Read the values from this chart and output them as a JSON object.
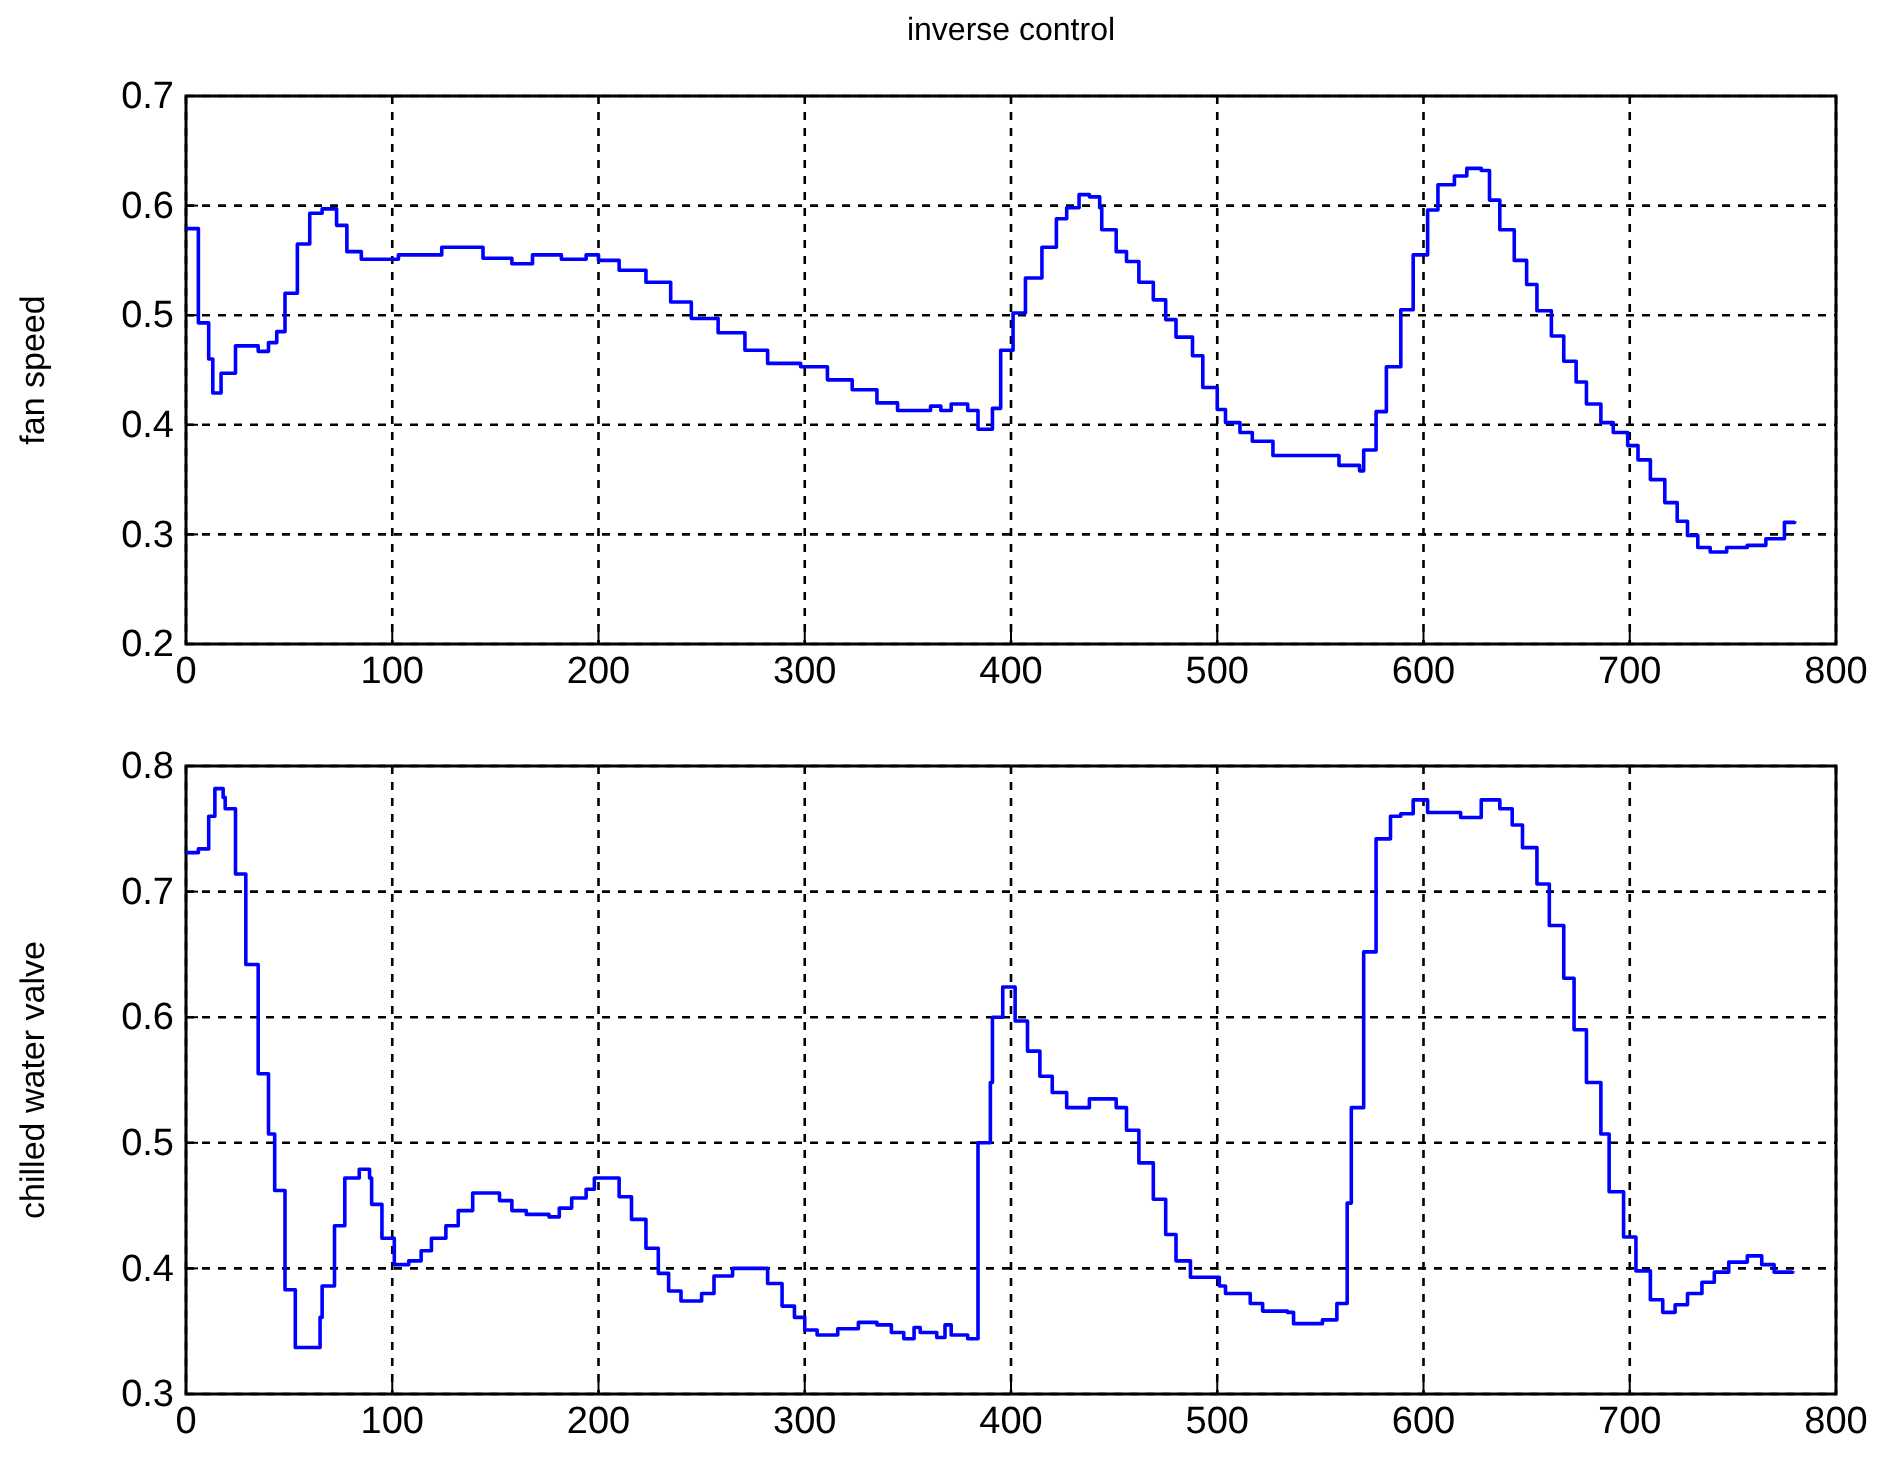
{
  "chart_data": [
    {
      "type": "step",
      "title": "inverse control",
      "ylabel": "fan speed",
      "xlim": [
        0,
        800
      ],
      "xticks": [
        0,
        100,
        200,
        300,
        400,
        500,
        600,
        700,
        800
      ],
      "ylim": [
        0.2,
        0.7
      ],
      "yticks": [
        0.2,
        0.3,
        0.4,
        0.5,
        0.6,
        0.7
      ],
      "grid": true,
      "line_style": "solid",
      "series": [
        {
          "color": "#0000ff",
          "x": [
            0,
            6,
            11,
            13,
            17,
            24,
            35,
            40,
            44,
            48,
            54,
            60,
            66,
            73,
            78,
            85,
            103,
            124,
            144,
            158,
            168,
            182,
            194,
            200,
            210,
            223,
            235,
            245,
            258,
            271,
            282,
            298,
            311,
            323,
            335,
            345,
            361,
            366,
            371,
            379,
            384,
            389,
            391,
            395,
            401,
            407,
            415,
            422,
            427,
            433,
            438,
            443,
            444,
            451,
            456,
            462,
            469,
            475,
            480,
            488,
            493,
            500,
            504,
            511,
            517,
            527,
            553,
            559,
            569,
            571,
            577,
            582,
            589,
            595,
            602,
            607,
            615,
            621,
            628,
            632,
            637,
            644,
            650,
            655,
            662,
            668,
            674,
            679,
            686,
            692,
            699,
            704,
            710,
            717,
            723,
            728,
            733,
            739,
            747,
            757,
            766,
            775,
            780
          ],
          "values": [
            0.579,
            0.493,
            0.46,
            0.429,
            0.447,
            0.472,
            0.467,
            0.475,
            0.485,
            0.52,
            0.565,
            0.593,
            0.597,
            0.582,
            0.558,
            0.551,
            0.555,
            0.562,
            0.552,
            0.547,
            0.555,
            0.551,
            0.555,
            0.55,
            0.541,
            0.53,
            0.512,
            0.497,
            0.484,
            0.468,
            0.456,
            0.453,
            0.441,
            0.432,
            0.42,
            0.413,
            0.417,
            0.413,
            0.419,
            0.413,
            0.396,
            0.396,
            0.415,
            0.468,
            0.502,
            0.534,
            0.562,
            0.588,
            0.598,
            0.61,
            0.608,
            0.598,
            0.578,
            0.558,
            0.549,
            0.53,
            0.514,
            0.496,
            0.48,
            0.463,
            0.434,
            0.414,
            0.402,
            0.393,
            0.385,
            0.372,
            0.372,
            0.363,
            0.358,
            0.377,
            0.412,
            0.453,
            0.505,
            0.555,
            0.596,
            0.619,
            0.627,
            0.634,
            0.632,
            0.605,
            0.578,
            0.55,
            0.528,
            0.504,
            0.481,
            0.458,
            0.439,
            0.419,
            0.402,
            0.393,
            0.381,
            0.368,
            0.35,
            0.329,
            0.312,
            0.299,
            0.288,
            0.284,
            0.288,
            0.29,
            0.296,
            0.311,
            0.312
          ]
        }
      ]
    },
    {
      "type": "step",
      "ylabel": "chilled water valve",
      "xlim": [
        0,
        800
      ],
      "xticks": [
        0,
        100,
        200,
        300,
        400,
        500,
        600,
        700,
        800
      ],
      "ylim": [
        0.3,
        0.8
      ],
      "yticks": [
        0.3,
        0.4,
        0.5,
        0.6,
        0.7,
        0.8
      ],
      "grid": true,
      "line_style": "solid",
      "series": [
        {
          "color": "#0000ff",
          "x": [
            0,
            6,
            11,
            14,
            18,
            19,
            24,
            29,
            35,
            40,
            43,
            48,
            53,
            65,
            66,
            72,
            77,
            84,
            89,
            90,
            95,
            101,
            108,
            114,
            119,
            126,
            132,
            139,
            148,
            152,
            158,
            165,
            176,
            181,
            187,
            194,
            198,
            208,
            210,
            216,
            223,
            229,
            234,
            240,
            250,
            256,
            265,
            277,
            282,
            289,
            295,
            300,
            306,
            316,
            326,
            335,
            342,
            348,
            353,
            356,
            364,
            368,
            371,
            379,
            384,
            390,
            391,
            396,
            402,
            408,
            414,
            420,
            427,
            438,
            451,
            456,
            462,
            469,
            475,
            480,
            487,
            501,
            504,
            516,
            522,
            534,
            537,
            551,
            558,
            563,
            565,
            571,
            577,
            584,
            589,
            595,
            602,
            618,
            628,
            637,
            643,
            648,
            655,
            661,
            668,
            673,
            679,
            686,
            690,
            697,
            703,
            710,
            716,
            722,
            728,
            735,
            741,
            748,
            757,
            764,
            770,
            779
          ],
          "values": [
            0.731,
            0.734,
            0.76,
            0.782,
            0.775,
            0.766,
            0.714,
            0.642,
            0.555,
            0.507,
            0.462,
            0.383,
            0.337,
            0.361,
            0.386,
            0.434,
            0.472,
            0.479,
            0.472,
            0.451,
            0.424,
            0.403,
            0.406,
            0.414,
            0.424,
            0.434,
            0.446,
            0.46,
            0.46,
            0.454,
            0.446,
            0.443,
            0.441,
            0.448,
            0.456,
            0.463,
            0.472,
            0.472,
            0.457,
            0.439,
            0.416,
            0.396,
            0.382,
            0.374,
            0.38,
            0.394,
            0.4,
            0.4,
            0.388,
            0.37,
            0.361,
            0.351,
            0.347,
            0.352,
            0.357,
            0.355,
            0.349,
            0.344,
            0.353,
            0.349,
            0.345,
            0.355,
            0.347,
            0.344,
            0.5,
            0.548,
            0.6,
            0.624,
            0.597,
            0.573,
            0.553,
            0.54,
            0.528,
            0.535,
            0.528,
            0.51,
            0.484,
            0.455,
            0.427,
            0.406,
            0.393,
            0.386,
            0.38,
            0.372,
            0.366,
            0.365,
            0.356,
            0.359,
            0.372,
            0.452,
            0.528,
            0.652,
            0.742,
            0.76,
            0.762,
            0.773,
            0.763,
            0.759,
            0.773,
            0.766,
            0.753,
            0.735,
            0.706,
            0.673,
            0.631,
            0.59,
            0.548,
            0.507,
            0.461,
            0.425,
            0.398,
            0.375,
            0.365,
            0.371,
            0.38,
            0.389,
            0.397,
            0.405,
            0.41,
            0.403,
            0.397,
            0.398
          ]
        }
      ]
    }
  ]
}
